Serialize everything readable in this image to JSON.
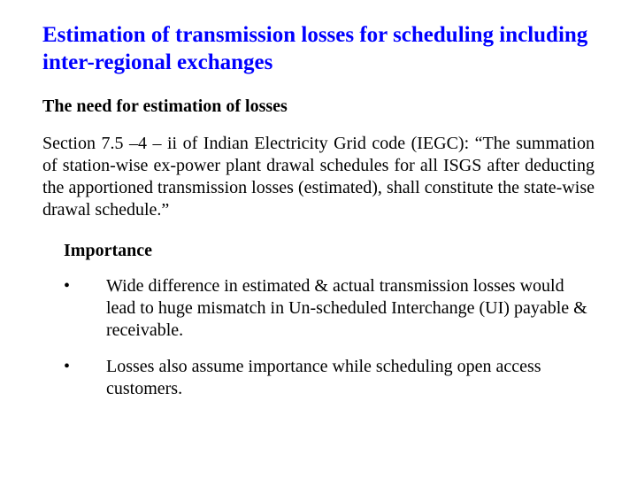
{
  "slide": {
    "title": "Estimation of transmission losses for scheduling including inter-regional exchanges",
    "title_color": "#0000ff",
    "title_fontsize": 25,
    "section1_heading": "The need for estimation of losses",
    "section1_body": "Section 7.5 –4 – ii of Indian Electricity Grid code (IEGC): “The summation of station-wise ex-power plant drawal schedules for all ISGS after deducting the apportioned transmission losses (estimated), shall constitute the state-wise drawal schedule.”",
    "section2_heading": "Importance",
    "bullets": [
      "Wide difference in estimated & actual transmission losses  would lead to huge mismatch in Un-scheduled Interchange (UI)  payable & receivable.",
      "Losses also assume importance while scheduling open access customers."
    ],
    "body_fontsize": 20,
    "text_color": "#000000",
    "background_color": "#ffffff",
    "font_family": "Times New Roman",
    "bullet_marker": "•"
  }
}
